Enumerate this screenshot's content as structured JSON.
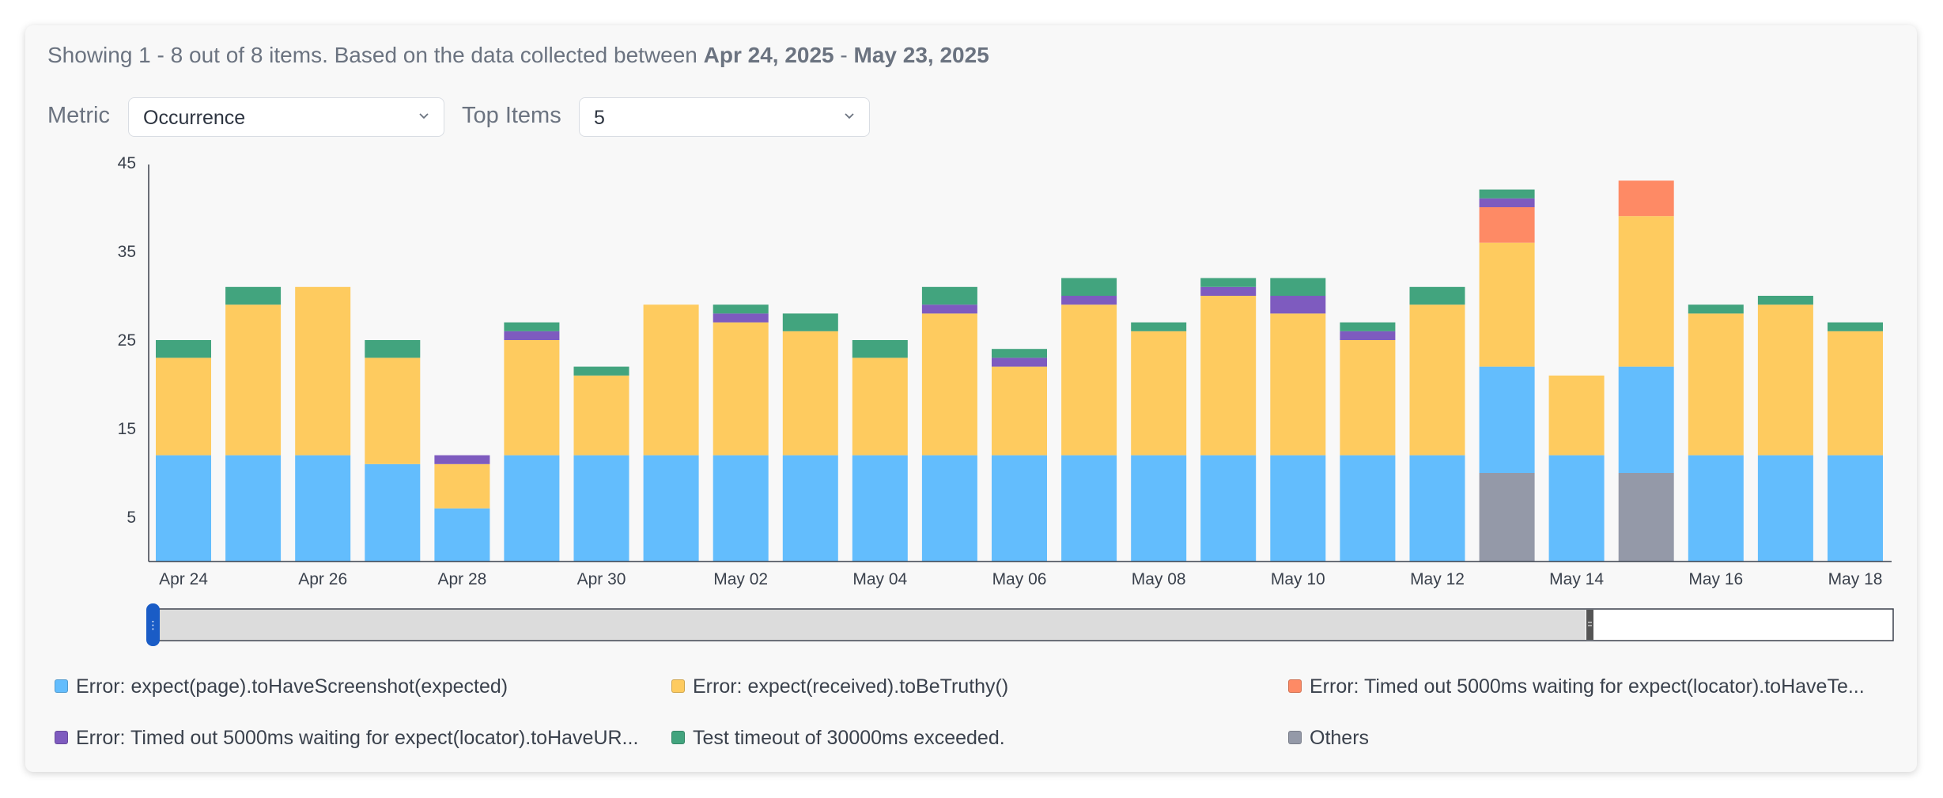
{
  "summary": {
    "prefix": "Showing 1 - 8 out of 8 items. Based on the data collected between ",
    "start_date": "Apr 24, 2025",
    "separator": " - ",
    "end_date": "May 23, 2025"
  },
  "filters": {
    "metric_label": "Metric",
    "metric_value": "Occurrence",
    "top_items_label": "Top Items",
    "top_items_value": "5"
  },
  "legend": [
    {
      "label": "Error: expect(page).toHaveScreenshot(expected)",
      "color": "#63bdfd"
    },
    {
      "label": "Error: expect(received).toBeTruthy()",
      "color": "#fecb5f"
    },
    {
      "label": "Error: Timed out 5000ms waiting for expect(locator).toHaveTe...",
      "color": "#fe8a65"
    },
    {
      "label": "Error: Timed out 5000ms waiting for expect(locator).toHaveUR...",
      "color": "#7e5bbf"
    },
    {
      "label": "Test timeout of 30000ms exceeded.",
      "color": "#42a47e"
    },
    {
      "label": "Others",
      "color": "#9499a8"
    }
  ],
  "chart_data": {
    "type": "bar",
    "stacked": true,
    "categories": [
      "Apr 24",
      "Apr 25",
      "Apr 26",
      "Apr 27",
      "Apr 28",
      "Apr 29",
      "Apr 30",
      "May 01",
      "May 02",
      "May 03",
      "May 04",
      "May 05",
      "May 06",
      "May 07",
      "May 08",
      "May 09",
      "May 10",
      "May 11",
      "May 12",
      "May 13",
      "May 14",
      "May 15",
      "May 16",
      "May 17",
      "May 18"
    ],
    "x_tick_labels": [
      "Apr 24",
      "",
      "Apr 26",
      "",
      "Apr 28",
      "",
      "Apr 30",
      "",
      "May 02",
      "",
      "May 04",
      "",
      "May 06",
      "",
      "May 08",
      "",
      "May 10",
      "",
      "May 12",
      "",
      "May 14",
      "",
      "May 16",
      "",
      "May 18"
    ],
    "y_ticks": [
      5,
      15,
      25,
      35,
      45
    ],
    "ylim": [
      0,
      45
    ],
    "grid": false,
    "series": [
      {
        "name": "Others",
        "color": "#9499a8",
        "values": [
          0,
          0,
          0,
          0,
          0,
          0,
          0,
          0,
          0,
          0,
          0,
          0,
          0,
          0,
          0,
          0,
          0,
          0,
          0,
          10,
          0,
          10,
          0,
          0,
          0
        ]
      },
      {
        "name": "Error: expect(page).toHaveScreenshot(expected)",
        "color": "#63bdfd",
        "values": [
          12,
          12,
          12,
          11,
          6,
          12,
          12,
          12,
          12,
          12,
          12,
          12,
          12,
          12,
          12,
          12,
          12,
          12,
          12,
          12,
          12,
          12,
          12,
          12,
          12
        ]
      },
      {
        "name": "Error: expect(received).toBeTruthy()",
        "color": "#fecb5f",
        "values": [
          11,
          17,
          19,
          12,
          5,
          13,
          9,
          17,
          15,
          14,
          11,
          16,
          10,
          17,
          14,
          18,
          16,
          13,
          17,
          14,
          9,
          17,
          16,
          17,
          14
        ]
      },
      {
        "name": "Error: Timed out 5000ms waiting for expect(locator).toHaveTe...",
        "color": "#fe8a65",
        "values": [
          0,
          0,
          0,
          0,
          0,
          0,
          0,
          0,
          0,
          0,
          0,
          0,
          0,
          0,
          0,
          0,
          0,
          0,
          0,
          4,
          0,
          4,
          0,
          0,
          0
        ]
      },
      {
        "name": "Error: Timed out 5000ms waiting for expect(locator).toHaveUR...",
        "color": "#7e5bbf",
        "values": [
          0,
          0,
          0,
          0,
          1,
          1,
          0,
          0,
          1,
          0,
          0,
          1,
          1,
          1,
          0,
          1,
          2,
          1,
          0,
          1,
          0,
          0,
          0,
          0,
          0
        ]
      },
      {
        "name": "Test timeout of 30000ms exceeded.",
        "color": "#42a47e",
        "values": [
          2,
          2,
          0,
          2,
          0,
          1,
          1,
          0,
          1,
          2,
          2,
          2,
          1,
          2,
          1,
          1,
          2,
          1,
          2,
          1,
          0,
          0,
          1,
          1,
          1
        ]
      }
    ]
  }
}
